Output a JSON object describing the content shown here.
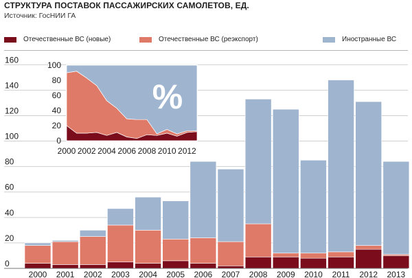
{
  "header": {
    "title": "СТРУКТУРА ПОСТАВОК ПАССАЖИРСКИХ САМОЛЕТОВ, ЕД.",
    "source": "Источник: ГосНИИ ГА"
  },
  "legend": [
    {
      "label": "Отечественные ВС (новые)",
      "color": "#7a0c1c"
    },
    {
      "label": "Отечественные ВС (реэкспорт)",
      "color": "#e07a68"
    },
    {
      "label": "Иностранные ВС",
      "color": "#9fb5cf"
    }
  ],
  "chart_data": [
    {
      "type": "bar",
      "stacked": true,
      "title": "СТРУКТУРА ПОСТАВОК ПАССАЖИРСКИХ САМОЛЕТОВ, ЕД.",
      "categories": [
        "2000",
        "2001",
        "2002",
        "2003",
        "2004",
        "2005",
        "2006",
        "2007",
        "2008",
        "2009",
        "2010",
        "2011",
        "2012",
        "2013"
      ],
      "series": [
        {
          "name": "Отечественные ВС (новые)",
          "color": "#7a0c1c",
          "values": [
            4,
            3,
            3,
            5,
            4,
            6,
            4,
            2,
            9,
            9,
            8,
            9,
            15,
            10
          ]
        },
        {
          "name": "Отечественные ВС (реэкспорт)",
          "color": "#e07a68",
          "values": [
            14,
            18,
            22,
            29,
            26,
            17,
            20,
            19,
            26,
            3,
            4,
            4,
            3,
            1
          ]
        },
        {
          "name": "Иностранные ВС",
          "color": "#9fb5cf",
          "values": [
            2,
            1,
            5,
            13,
            26,
            30,
            60,
            57,
            98,
            113,
            73,
            135,
            113,
            73
          ]
        }
      ],
      "yticks": [
        0,
        20,
        40,
        60,
        80,
        100,
        120,
        140,
        160
      ],
      "ylim": [
        0,
        165
      ],
      "grid": true,
      "legend_position": "top"
    },
    {
      "type": "area",
      "stacked": true,
      "unit_label": "%",
      "x": [
        2000,
        2001,
        2002,
        2003,
        2004,
        2005,
        2006,
        2007,
        2008,
        2009,
        2010,
        2011,
        2012,
        2013
      ],
      "xticks": [
        "2000",
        "2002",
        "2004",
        "2006",
        "2008",
        "2010",
        "2012"
      ],
      "yticks": [
        0,
        20,
        40,
        60,
        80,
        100
      ],
      "ylim": [
        0,
        100
      ],
      "series": [
        {
          "name": "Отечественные ВС (новые)",
          "color": "#7a0c1c",
          "values": [
            20,
            10,
            10,
            11,
            7,
            11,
            5,
            3,
            8,
            7,
            10,
            6,
            11,
            12
          ]
        },
        {
          "name": "Отечественные ВС (реэкспорт)",
          "color": "#e07a68",
          "values": [
            70,
            82,
            73,
            62,
            46,
            32,
            24,
            25,
            20,
            2,
            5,
            3,
            2,
            1
          ]
        },
        {
          "name": "Иностранные ВС",
          "color": "#9fb5cf",
          "values": [
            10,
            8,
            17,
            27,
            47,
            57,
            71,
            72,
            72,
            91,
            85,
            91,
            87,
            87
          ]
        }
      ]
    }
  ]
}
